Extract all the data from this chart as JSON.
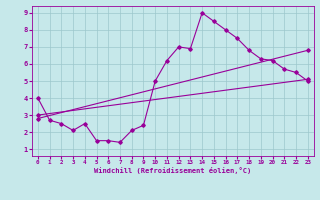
{
  "xlabel": "Windchill (Refroidissement éolien,°C)",
  "bg_color": "#c6e8ea",
  "grid_color": "#9dc8cc",
  "line_color": "#990099",
  "xlim": [
    -0.5,
    23.5
  ],
  "ylim": [
    0.6,
    9.4
  ],
  "xticks": [
    0,
    1,
    2,
    3,
    4,
    5,
    6,
    7,
    8,
    9,
    10,
    11,
    12,
    13,
    14,
    15,
    16,
    17,
    18,
    19,
    20,
    21,
    22,
    23
  ],
  "yticks": [
    1,
    2,
    3,
    4,
    5,
    6,
    7,
    8,
    9
  ],
  "series1_x": [
    0,
    1,
    2,
    3,
    4,
    5,
    6,
    7,
    8,
    9,
    10,
    11,
    12,
    13,
    14,
    15,
    16,
    17,
    18,
    19,
    20,
    21,
    22,
    23
  ],
  "series1_y": [
    4.0,
    2.7,
    2.5,
    2.1,
    2.5,
    1.5,
    1.5,
    1.4,
    2.1,
    2.4,
    5.0,
    6.2,
    7.0,
    6.9,
    9.0,
    8.5,
    8.0,
    7.5,
    6.8,
    6.3,
    6.2,
    5.7,
    5.5,
    5.0
  ],
  "series2_x": [
    0,
    23
  ],
  "series2_y": [
    3.0,
    5.1
  ],
  "series3_x": [
    0,
    23
  ],
  "series3_y": [
    2.8,
    6.8
  ]
}
